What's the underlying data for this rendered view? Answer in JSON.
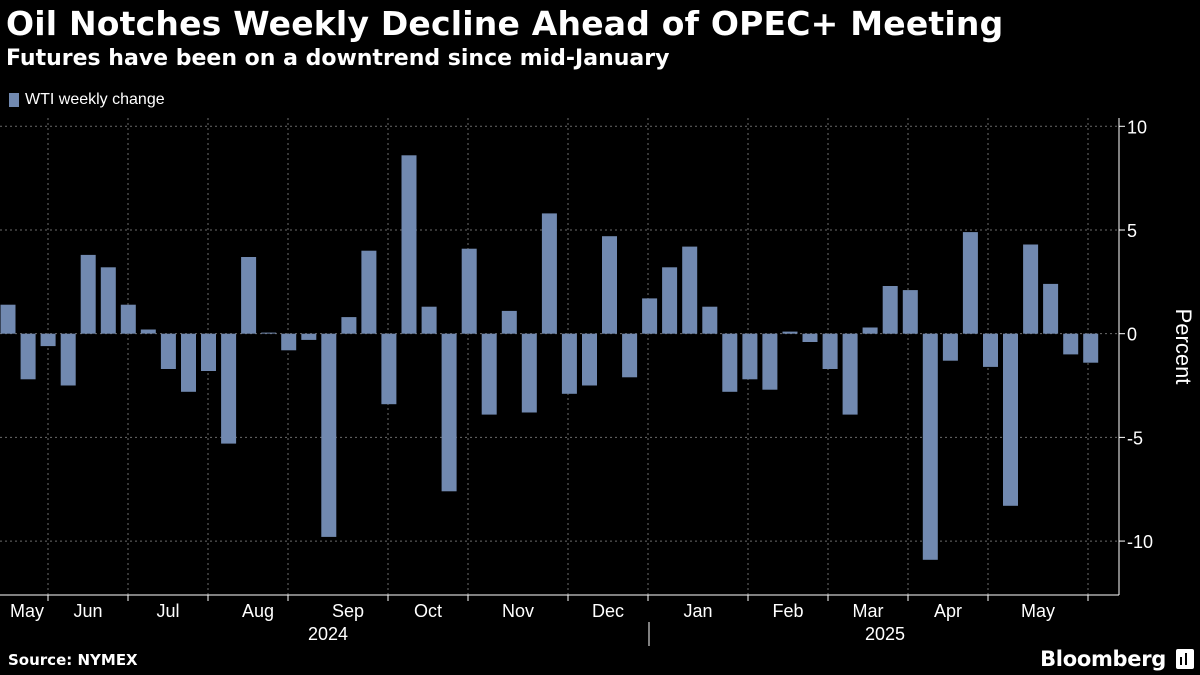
{
  "header": {
    "title": "Oil Notches Weekly Decline Ahead of OPEC+ Meeting",
    "subtitle": "Futures have been on a downtrend since mid-January"
  },
  "footer": {
    "source": "Source: NYMEX",
    "brand": "Bloomberg",
    "brand_icon": "bloomberg-chart-icon"
  },
  "colors": {
    "background": "#000000",
    "bar": "#7189b0",
    "grid": "#6b6b6b",
    "text": "#ffffff"
  },
  "chart_data": {
    "type": "bar",
    "title": "Oil Notches Weekly Decline Ahead of OPEC+ Meeting",
    "subtitle": "Futures have been on a downtrend since mid-January",
    "legend": [
      "WTI weekly change"
    ],
    "legend_position": "top-left",
    "ylabel": "Percent",
    "ylim": [
      -12.6,
      10.4
    ],
    "yticks": [
      10,
      5,
      0,
      -5,
      -10
    ],
    "ytick_labels": [
      "10",
      "5",
      "0",
      "-5",
      "-10"
    ],
    "y_axis_position": "right",
    "grid": true,
    "x_month_labels": [
      "May",
      "Jun",
      "Jul",
      "Aug",
      "Sep",
      "Oct",
      "Nov",
      "Dec",
      "Jan",
      "Feb",
      "Mar",
      "Apr",
      "May"
    ],
    "x_year_labels": [
      "2024",
      "2025"
    ],
    "series": [
      {
        "name": "WTI weekly change",
        "values": [
          1.4,
          -2.2,
          -0.6,
          -2.5,
          3.8,
          3.2,
          1.4,
          0.2,
          -1.7,
          -2.8,
          -1.8,
          -5.3,
          3.7,
          0.05,
          -0.8,
          -0.3,
          -9.8,
          0.8,
          4.0,
          -3.4,
          8.6,
          1.3,
          -7.6,
          4.1,
          -3.9,
          1.1,
          -3.8,
          5.8,
          -2.9,
          -2.5,
          4.7,
          -2.1,
          1.7,
          3.2,
          4.2,
          1.3,
          -2.8,
          -2.2,
          -2.7,
          0.1,
          -0.4,
          -1.7,
          -3.9,
          0.3,
          2.3,
          2.1,
          -10.9,
          -1.3,
          4.9,
          -1.6,
          -8.3,
          4.3,
          2.4,
          -1.0,
          -1.4
        ]
      }
    ]
  }
}
